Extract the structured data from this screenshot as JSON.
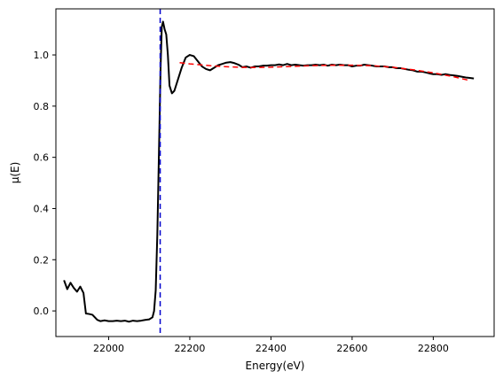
{
  "chart_data": {
    "type": "line",
    "title": "",
    "xlabel": "Energy(eV)",
    "ylabel": "μ(E)",
    "xlim": [
      21870,
      22950
    ],
    "ylim": [
      -0.1,
      1.18
    ],
    "xticks": [
      22000,
      22200,
      22400,
      22600,
      22800
    ],
    "yticks": [
      0.0,
      0.2,
      0.4,
      0.6,
      0.8,
      1.0
    ],
    "xtick_labels": [
      "22000",
      "22200",
      "22400",
      "22600",
      "22800"
    ],
    "ytick_labels": [
      "0.0",
      "0.2",
      "0.4",
      "0.6",
      "0.8",
      "1.0"
    ],
    "grid": false,
    "legend": "none",
    "series": [
      {
        "style": "solid",
        "color": "#000000",
        "points": [
          [
            21890,
            0.12
          ],
          [
            21898,
            0.085
          ],
          [
            21906,
            0.11
          ],
          [
            21914,
            0.09
          ],
          [
            21922,
            0.075
          ],
          [
            21930,
            0.095
          ],
          [
            21938,
            0.07
          ],
          [
            21944,
            -0.01
          ],
          [
            21952,
            -0.012
          ],
          [
            21960,
            -0.015
          ],
          [
            21966,
            -0.025
          ],
          [
            21972,
            -0.035
          ],
          [
            21980,
            -0.04
          ],
          [
            21990,
            -0.037
          ],
          [
            22000,
            -0.04
          ],
          [
            22010,
            -0.04
          ],
          [
            22020,
            -0.038
          ],
          [
            22030,
            -0.04
          ],
          [
            22040,
            -0.038
          ],
          [
            22050,
            -0.042
          ],
          [
            22060,
            -0.038
          ],
          [
            22070,
            -0.04
          ],
          [
            22080,
            -0.038
          ],
          [
            22090,
            -0.035
          ],
          [
            22100,
            -0.033
          ],
          [
            22108,
            -0.025
          ],
          [
            22112,
            0.0
          ],
          [
            22116,
            0.08
          ],
          [
            22120,
            0.3
          ],
          [
            22124,
            0.62
          ],
          [
            22128,
            0.95
          ],
          [
            22131,
            1.11
          ],
          [
            22134,
            1.13
          ],
          [
            22138,
            1.1
          ],
          [
            22142,
            1.08
          ],
          [
            22146,
            1.0
          ],
          [
            22150,
            0.88
          ],
          [
            22156,
            0.85
          ],
          [
            22162,
            0.86
          ],
          [
            22170,
            0.9
          ],
          [
            22180,
            0.95
          ],
          [
            22190,
            0.99
          ],
          [
            22200,
            1.0
          ],
          [
            22210,
            0.995
          ],
          [
            22220,
            0.975
          ],
          [
            22230,
            0.955
          ],
          [
            22240,
            0.945
          ],
          [
            22250,
            0.94
          ],
          [
            22260,
            0.95
          ],
          [
            22270,
            0.96
          ],
          [
            22280,
            0.965
          ],
          [
            22290,
            0.97
          ],
          [
            22300,
            0.972
          ],
          [
            22310,
            0.968
          ],
          [
            22320,
            0.962
          ],
          [
            22330,
            0.952
          ],
          [
            22340,
            0.955
          ],
          [
            22350,
            0.95
          ],
          [
            22360,
            0.955
          ],
          [
            22370,
            0.955
          ],
          [
            22380,
            0.958
          ],
          [
            22390,
            0.958
          ],
          [
            22400,
            0.96
          ],
          [
            22410,
            0.96
          ],
          [
            22420,
            0.963
          ],
          [
            22430,
            0.96
          ],
          [
            22440,
            0.965
          ],
          [
            22450,
            0.96
          ],
          [
            22460,
            0.962
          ],
          [
            22470,
            0.96
          ],
          [
            22480,
            0.958
          ],
          [
            22490,
            0.96
          ],
          [
            22500,
            0.96
          ],
          [
            22510,
            0.962
          ],
          [
            22520,
            0.96
          ],
          [
            22530,
            0.962
          ],
          [
            22540,
            0.958
          ],
          [
            22550,
            0.962
          ],
          [
            22560,
            0.96
          ],
          [
            22570,
            0.962
          ],
          [
            22580,
            0.96
          ],
          [
            22590,
            0.96
          ],
          [
            22600,
            0.955
          ],
          [
            22610,
            0.958
          ],
          [
            22620,
            0.958
          ],
          [
            22630,
            0.962
          ],
          [
            22640,
            0.96
          ],
          [
            22650,
            0.958
          ],
          [
            22660,
            0.955
          ],
          [
            22670,
            0.955
          ],
          [
            22680,
            0.955
          ],
          [
            22690,
            0.952
          ],
          [
            22700,
            0.952
          ],
          [
            22710,
            0.948
          ],
          [
            22720,
            0.948
          ],
          [
            22730,
            0.945
          ],
          [
            22740,
            0.942
          ],
          [
            22750,
            0.94
          ],
          [
            22760,
            0.935
          ],
          [
            22770,
            0.935
          ],
          [
            22780,
            0.932
          ],
          [
            22790,
            0.928
          ],
          [
            22800,
            0.925
          ],
          [
            22810,
            0.925
          ],
          [
            22820,
            0.922
          ],
          [
            22830,
            0.925
          ],
          [
            22840,
            0.922
          ],
          [
            22850,
            0.92
          ],
          [
            22860,
            0.918
          ],
          [
            22870,
            0.915
          ],
          [
            22880,
            0.912
          ],
          [
            22890,
            0.91
          ],
          [
            22900,
            0.908
          ]
        ]
      },
      {
        "style": "dashed",
        "color": "#ff0000",
        "points": [
          [
            22175,
            0.97
          ],
          [
            22200,
            0.965
          ],
          [
            22250,
            0.958
          ],
          [
            22300,
            0.953
          ],
          [
            22350,
            0.951
          ],
          [
            22400,
            0.952
          ],
          [
            22450,
            0.955
          ],
          [
            22500,
            0.958
          ],
          [
            22550,
            0.96
          ],
          [
            22600,
            0.96
          ],
          [
            22650,
            0.958
          ],
          [
            22700,
            0.952
          ],
          [
            22750,
            0.942
          ],
          [
            22800,
            0.93
          ],
          [
            22850,
            0.915
          ],
          [
            22890,
            0.9
          ]
        ]
      }
    ],
    "vline": {
      "x": 22127,
      "style": "dashed",
      "color": "#0000cc"
    }
  }
}
